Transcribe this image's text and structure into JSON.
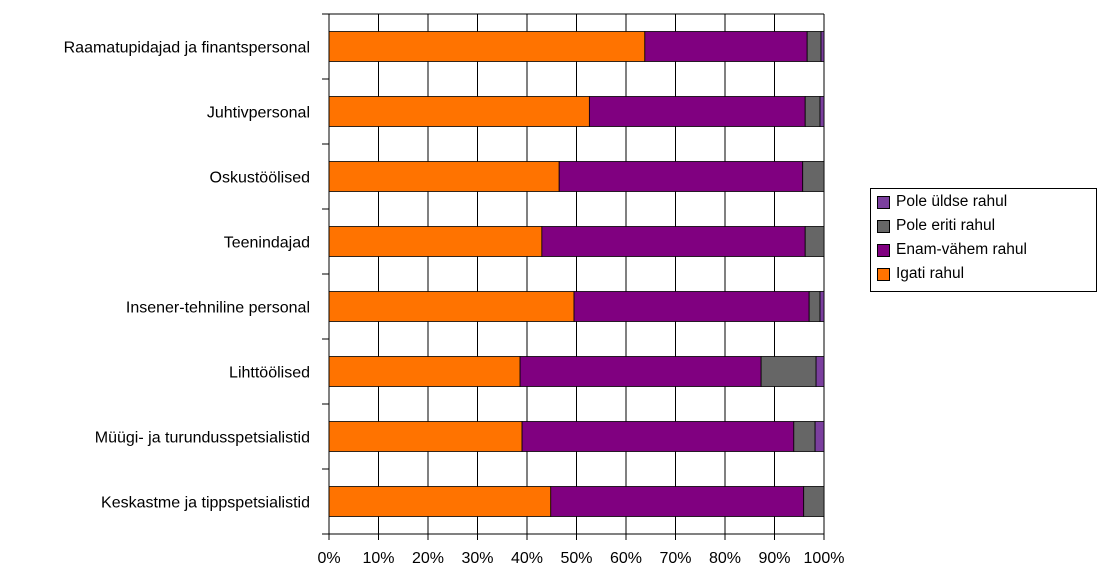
{
  "chart_data": {
    "type": "bar",
    "orientation": "horizontal",
    "stacked": true,
    "percent_axis": true,
    "categories": [
      "Raamatupidajad ja finantspersonal",
      "Juhtivpersonal",
      "Oskustöölised",
      "Teenindajad",
      "Insener-tehniline personal",
      "Lihttöölised",
      "Müügi- ja turundusspetsialistid",
      "Keskastme ja tippspetsialistid"
    ],
    "series": [
      {
        "name": "Igati rahul",
        "color": "#ff7300",
        "values": [
          63.8,
          52.6,
          46.5,
          43.0,
          49.5,
          38.6,
          39.0,
          44.8
        ]
      },
      {
        "name": "Enam-vähem rahul",
        "color": "#800080",
        "values": [
          32.8,
          43.6,
          49.2,
          53.2,
          47.5,
          48.7,
          54.9,
          51.1
        ]
      },
      {
        "name": "Pole eriti rahul",
        "color": "#666666",
        "values": [
          2.8,
          3.0,
          4.3,
          3.8,
          2.2,
          11.1,
          4.3,
          4.1
        ]
      },
      {
        "name": "Pole üldse rahul",
        "color": "#7b3f9e",
        "values": [
          0.6,
          0.8,
          0.0,
          0.0,
          0.8,
          1.6,
          1.8,
          0.0
        ]
      }
    ],
    "legend_order": [
      "Pole üldse rahul",
      "Pole eriti rahul",
      "Enam-vähem rahul",
      "Igati rahul"
    ],
    "xlim": [
      0,
      100
    ],
    "xticks": [
      "0%",
      "10%",
      "20%",
      "30%",
      "40%",
      "50%",
      "60%",
      "70%",
      "80%",
      "90%",
      "100%"
    ],
    "grid": true,
    "legend_position": "right"
  }
}
